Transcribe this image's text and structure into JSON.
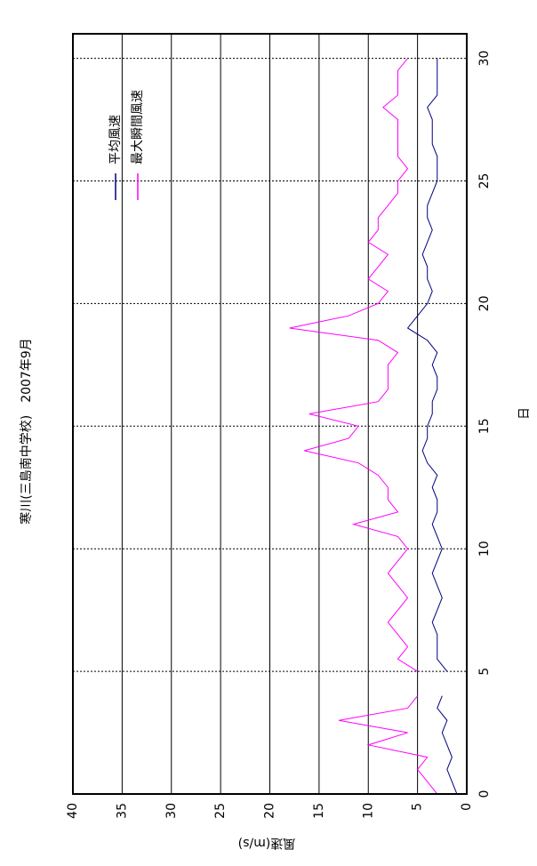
{
  "chart_data": {
    "type": "line",
    "title": "寒川(三島南中学校)　2007年9月",
    "x_label": "日",
    "y_label": "風速(m/s)",
    "x": [
      0,
      0.5,
      1,
      1.5,
      2,
      2.5,
      3,
      3.5,
      4,
      4.5,
      5,
      5.5,
      6,
      6.5,
      7,
      7.5,
      8,
      8.5,
      9,
      9.5,
      10,
      10.5,
      11,
      11.5,
      12,
      12.5,
      13,
      13.5,
      14,
      14.5,
      15,
      15.5,
      16,
      16.5,
      17,
      17.5,
      18,
      18.5,
      19,
      19.5,
      20,
      20.5,
      21,
      21.5,
      22,
      22.5,
      23,
      23.5,
      24,
      24.5,
      25,
      25.5,
      26,
      26.5,
      27,
      27.5,
      28,
      28.5,
      29,
      29.5,
      30
    ],
    "series": [
      {
        "name": "平均風速",
        "color": "#000080",
        "values": [
          1,
          1.5,
          2,
          1.5,
          2,
          2.5,
          2,
          3,
          2.5,
          null,
          2,
          3,
          3,
          3,
          3.5,
          3,
          2.5,
          3,
          3.5,
          3,
          2.5,
          3,
          3.5,
          3,
          3,
          3.5,
          3,
          4,
          4.5,
          4,
          4,
          3.5,
          3.5,
          3,
          3,
          3.5,
          3,
          4,
          6,
          5,
          4,
          3.5,
          4,
          4,
          4.5,
          4,
          3.5,
          4,
          4,
          3.5,
          3,
          3,
          3,
          3.5,
          3.5,
          3.5,
          4,
          3,
          3,
          3,
          3
        ]
      },
      {
        "name": "最大瞬間風速",
        "color": "#ff00ff",
        "values": [
          3,
          4,
          5,
          4,
          10,
          6,
          13,
          6,
          5,
          null,
          5,
          7,
          6,
          7,
          8,
          7,
          6,
          7,
          8,
          7,
          6,
          7,
          11.5,
          7,
          8,
          8,
          9,
          11,
          16.5,
          12,
          11,
          16,
          9,
          8,
          8,
          8,
          7,
          9,
          18,
          12,
          9,
          8,
          10,
          9,
          8,
          10,
          9,
          9,
          8,
          7,
          7,
          6,
          7,
          7,
          7,
          7,
          8.5,
          7,
          7,
          7,
          6
        ]
      }
    ],
    "xlim": [
      0,
      31
    ],
    "xticks": [
      0,
      5,
      10,
      15,
      20,
      25,
      30
    ],
    "ylim": [
      0,
      40
    ],
    "yticks": [
      0,
      5,
      10,
      15,
      20,
      25,
      30,
      35,
      40
    ],
    "grid": true
  }
}
